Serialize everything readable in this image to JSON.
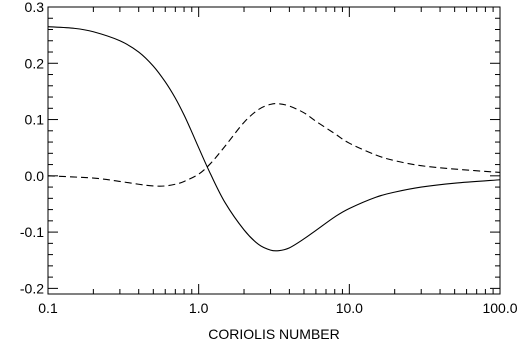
{
  "chart_data": {
    "type": "line",
    "xlabel": "CORIOLIS NUMBER",
    "ylabel": "",
    "xscale": "log",
    "xlim": [
      0.1,
      100.0
    ],
    "ylim": [
      -0.21,
      0.3
    ],
    "x_ticks": [
      0.1,
      1.0,
      10.0,
      100.0
    ],
    "x_tick_labels": [
      "0.1",
      "1.0",
      "10.0",
      "100.0"
    ],
    "y_ticks": [
      -0.2,
      -0.1,
      0.0,
      0.1,
      0.2,
      0.3
    ],
    "y_tick_labels": [
      "-0.2",
      "-0.1",
      "0.0",
      "0.1",
      "0.2",
      "0.3"
    ],
    "grid": false,
    "legend": "none",
    "series": [
      {
        "line_style": "solid",
        "color": "#000000",
        "x": [
          0.1,
          0.15,
          0.2,
          0.3,
          0.4,
          0.5,
          0.6,
          0.7,
          0.8,
          0.9,
          1.0,
          1.2,
          1.5,
          2.0,
          2.5,
          3.0,
          3.4,
          4.0,
          5.0,
          6.0,
          8.0,
          10.0,
          15.0,
          20.0,
          30.0,
          50.0,
          100.0
        ],
        "y": [
          0.265,
          0.262,
          0.256,
          0.24,
          0.22,
          0.195,
          0.167,
          0.138,
          0.108,
          0.078,
          0.05,
          0.003,
          -0.048,
          -0.096,
          -0.122,
          -0.132,
          -0.133,
          -0.128,
          -0.112,
          -0.097,
          -0.073,
          -0.058,
          -0.038,
          -0.029,
          -0.02,
          -0.013,
          -0.007
        ]
      },
      {
        "line_style": "dashed",
        "color": "#000000",
        "x": [
          0.1,
          0.2,
          0.3,
          0.4,
          0.5,
          0.6,
          0.7,
          0.8,
          1.0,
          1.2,
          1.5,
          2.0,
          2.5,
          3.0,
          3.4,
          4.0,
          5.0,
          6.0,
          8.0,
          10.0,
          15.0,
          20.0,
          30.0,
          50.0,
          100.0
        ],
        "y": [
          0.0,
          -0.004,
          -0.01,
          -0.015,
          -0.018,
          -0.018,
          -0.015,
          -0.01,
          0.003,
          0.022,
          0.053,
          0.095,
          0.118,
          0.127,
          0.128,
          0.124,
          0.112,
          0.097,
          0.075,
          0.058,
          0.037,
          0.027,
          0.018,
          0.012,
          0.006
        ]
      }
    ]
  }
}
